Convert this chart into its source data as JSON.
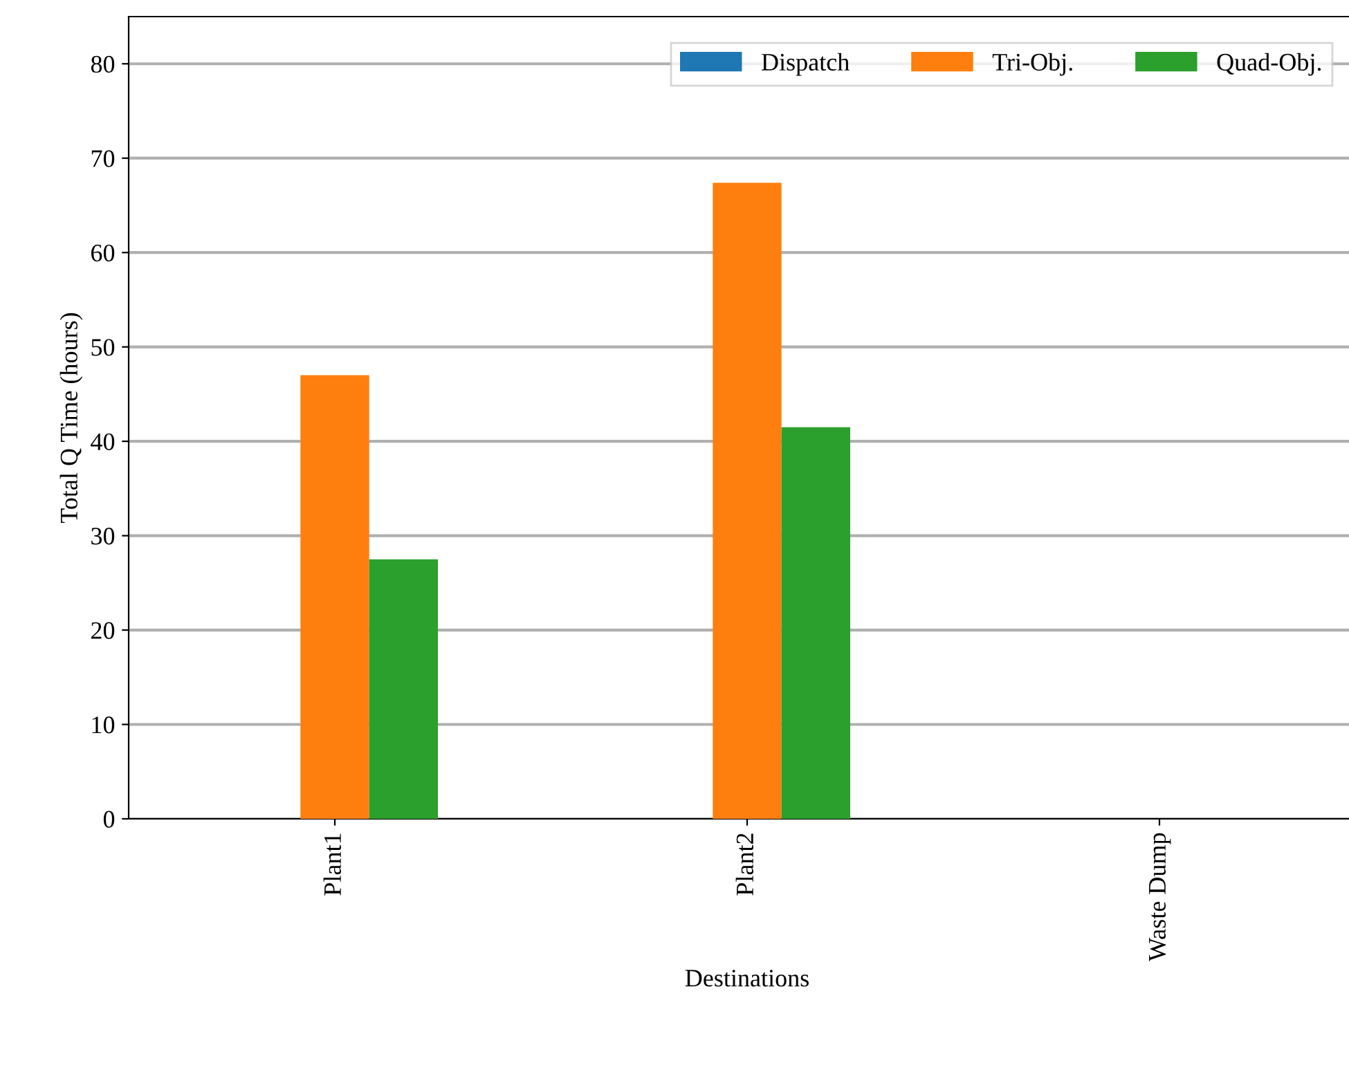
{
  "chart_data": {
    "type": "bar",
    "xlabel": "Destinations",
    "ylabel": "Total Q Time (hours)",
    "categories": [
      "Plant1",
      "Plant2",
      "Waste Dump"
    ],
    "series": [
      {
        "name": "Dispatch",
        "color": "#1f77b4",
        "values": [
          0,
          0,
          0
        ]
      },
      {
        "name": "Tri-Obj.",
        "color": "#ff7f0e",
        "values": [
          47.0,
          67.4,
          0
        ]
      },
      {
        "name": "Quad-Obj.",
        "color": "#2ca02c",
        "values": [
          27.5,
          41.5,
          0
        ]
      }
    ],
    "ylim": [
      0,
      85
    ],
    "yticks": [
      0,
      10,
      20,
      30,
      40,
      50,
      60,
      70,
      80
    ],
    "grid": "y",
    "legend": "top right"
  }
}
